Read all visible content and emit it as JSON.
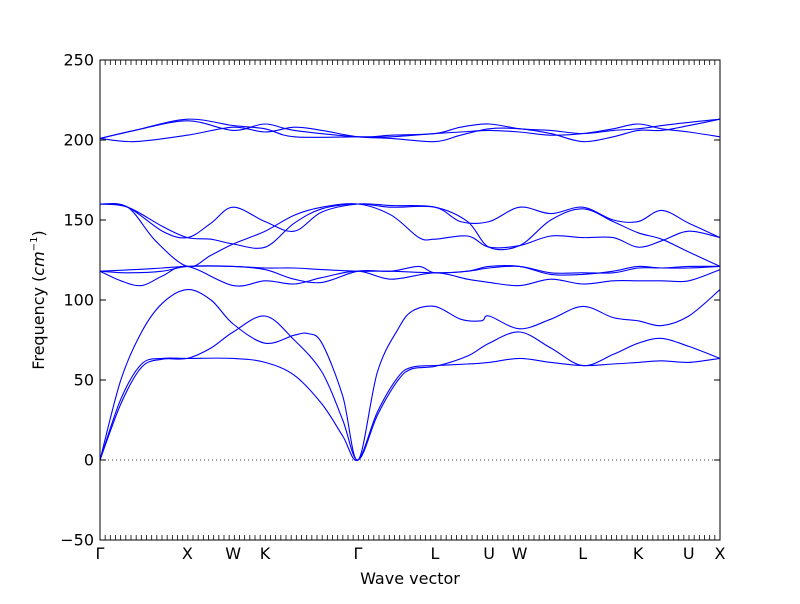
{
  "chart_data": {
    "type": "line",
    "xlabel": "Wave vector",
    "ylabel": "Frequency",
    "ylabel_unit_base": "cm",
    "ylabel_unit_exp": "−1",
    "ylim": [
      -50,
      250
    ],
    "yticks": [
      -50,
      0,
      50,
      100,
      150,
      200,
      250
    ],
    "xlim": [
      0,
      8.94
    ],
    "xticks": [
      {
        "label": "Γ",
        "x": 0
      },
      {
        "label": "X",
        "x": 1.26
      },
      {
        "label": "W",
        "x": 1.92
      },
      {
        "label": "K",
        "x": 2.38
      },
      {
        "label": "Γ",
        "x": 3.72
      },
      {
        "label": "L",
        "x": 4.83
      },
      {
        "label": "U",
        "x": 5.61
      },
      {
        "label": "W",
        "x": 6.05
      },
      {
        "label": "L",
        "x": 6.96
      },
      {
        "label": "K",
        "x": 7.76
      },
      {
        "label": "U",
        "x": 8.49
      },
      {
        "label": "X",
        "x": 8.94
      }
    ],
    "line_color": "#0000ff",
    "zero_line": {
      "y": 0,
      "style": "dotted"
    },
    "branches": [
      [
        [
          0,
          0
        ],
        [
          0.3,
          38
        ],
        [
          0.6,
          60
        ],
        [
          0.9,
          63.5
        ],
        [
          1.26,
          63.5
        ],
        [
          1.92,
          63.5
        ],
        [
          2.38,
          61
        ],
        [
          2.8,
          53
        ],
        [
          3.2,
          35
        ],
        [
          3.5,
          15
        ],
        [
          3.72,
          0
        ],
        [
          4.0,
          30
        ],
        [
          4.3,
          52
        ],
        [
          4.5,
          58
        ],
        [
          4.83,
          59
        ],
        [
          5.3,
          60
        ],
        [
          5.61,
          61
        ],
        [
          6.05,
          63.5
        ],
        [
          6.5,
          61
        ],
        [
          6.96,
          59
        ],
        [
          7.4,
          60
        ],
        [
          7.76,
          61
        ],
        [
          8.1,
          62
        ],
        [
          8.49,
          61
        ],
        [
          8.94,
          63.5
        ]
      ],
      [
        [
          0,
          0
        ],
        [
          0.3,
          35
        ],
        [
          0.6,
          58
        ],
        [
          0.9,
          63
        ],
        [
          1.26,
          63.5
        ],
        [
          1.6,
          70
        ],
        [
          1.92,
          80
        ],
        [
          2.38,
          90
        ],
        [
          2.8,
          75
        ],
        [
          3.2,
          55
        ],
        [
          3.5,
          25
        ],
        [
          3.72,
          0
        ],
        [
          4.0,
          28
        ],
        [
          4.3,
          50
        ],
        [
          4.5,
          57
        ],
        [
          4.83,
          58.5
        ],
        [
          5.3,
          65
        ],
        [
          5.61,
          73
        ],
        [
          6.05,
          80
        ],
        [
          6.5,
          70
        ],
        [
          6.96,
          59
        ],
        [
          7.4,
          66
        ],
        [
          7.76,
          73
        ],
        [
          8.1,
          76
        ],
        [
          8.49,
          71
        ],
        [
          8.94,
          63.5
        ]
      ],
      [
        [
          0,
          0
        ],
        [
          0.3,
          50
        ],
        [
          0.6,
          80
        ],
        [
          0.9,
          98
        ],
        [
          1.26,
          106.5
        ],
        [
          1.6,
          100
        ],
        [
          1.92,
          85
        ],
        [
          2.38,
          73
        ],
        [
          2.8,
          78
        ],
        [
          3.0,
          79
        ],
        [
          3.2,
          73
        ],
        [
          3.5,
          40
        ],
        [
          3.72,
          0
        ],
        [
          4.0,
          55
        ],
        [
          4.3,
          82
        ],
        [
          4.5,
          93
        ],
        [
          4.83,
          96
        ],
        [
          5.2,
          88
        ],
        [
          5.5,
          87
        ],
        [
          5.61,
          90
        ],
        [
          6.05,
          82
        ],
        [
          6.5,
          88
        ],
        [
          6.96,
          96
        ],
        [
          7.4,
          89
        ],
        [
          7.76,
          87
        ],
        [
          8.1,
          84
        ],
        [
          8.49,
          90
        ],
        [
          8.94,
          106.5
        ]
      ],
      [
        [
          0,
          118
        ],
        [
          0.3,
          112
        ],
        [
          0.6,
          109
        ],
        [
          0.9,
          115
        ],
        [
          1.26,
          121
        ],
        [
          1.92,
          109
        ],
        [
          2.38,
          112
        ],
        [
          2.8,
          110
        ],
        [
          3.2,
          114
        ],
        [
          3.72,
          118
        ],
        [
          4.2,
          113
        ],
        [
          4.83,
          117
        ],
        [
          5.3,
          113
        ],
        [
          5.61,
          111
        ],
        [
          6.05,
          109
        ],
        [
          6.5,
          113
        ],
        [
          6.96,
          110
        ],
        [
          7.4,
          112
        ],
        [
          7.76,
          112
        ],
        [
          8.1,
          112
        ],
        [
          8.49,
          112
        ],
        [
          8.94,
          119
        ]
      ],
      [
        [
          0,
          118
        ],
        [
          0.4,
          117
        ],
        [
          0.9,
          118
        ],
        [
          1.26,
          121
        ],
        [
          1.92,
          121
        ],
        [
          2.38,
          119
        ],
        [
          2.8,
          113
        ],
        [
          3.2,
          111
        ],
        [
          3.72,
          118
        ],
        [
          4.2,
          118
        ],
        [
          4.6,
          121
        ],
        [
          4.83,
          117
        ],
        [
          5.3,
          118
        ],
        [
          5.61,
          120
        ],
        [
          6.05,
          121
        ],
        [
          6.5,
          117
        ],
        [
          6.96,
          117
        ],
        [
          7.4,
          117
        ],
        [
          7.76,
          120
        ],
        [
          8.1,
          120
        ],
        [
          8.49,
          120
        ],
        [
          8.94,
          121
        ]
      ],
      [
        [
          0,
          118
        ],
        [
          0.5,
          119
        ],
        [
          0.9,
          120
        ],
        [
          1.26,
          121
        ],
        [
          1.92,
          121
        ],
        [
          2.38,
          120
        ],
        [
          2.8,
          120
        ],
        [
          3.2,
          119
        ],
        [
          3.72,
          118
        ],
        [
          4.2,
          118
        ],
        [
          4.83,
          117
        ],
        [
          5.3,
          118
        ],
        [
          5.61,
          121
        ],
        [
          6.05,
          121
        ],
        [
          6.5,
          116
        ],
        [
          6.96,
          116
        ],
        [
          7.4,
          118
        ],
        [
          7.76,
          121
        ],
        [
          8.1,
          120
        ],
        [
          8.49,
          121
        ],
        [
          8.94,
          121
        ]
      ],
      [
        [
          0,
          160
        ],
        [
          0.4,
          158
        ],
        [
          0.8,
          137
        ],
        [
          1.26,
          121
        ],
        [
          1.6,
          128
        ],
        [
          1.92,
          135
        ],
        [
          2.38,
          143
        ],
        [
          2.8,
          153
        ],
        [
          3.2,
          158
        ],
        [
          3.72,
          160
        ],
        [
          4.2,
          153
        ],
        [
          4.6,
          139
        ],
        [
          4.83,
          138
        ],
        [
          5.3,
          140
        ],
        [
          5.61,
          133
        ],
        [
          6.05,
          134
        ],
        [
          6.5,
          140
        ],
        [
          6.96,
          139
        ],
        [
          7.4,
          139
        ],
        [
          7.76,
          133
        ],
        [
          8.1,
          137
        ],
        [
          8.49,
          143
        ],
        [
          8.94,
          139
        ]
      ],
      [
        [
          0,
          160
        ],
        [
          0.4,
          158
        ],
        [
          0.9,
          146
        ],
        [
          1.26,
          139
        ],
        [
          1.6,
          138
        ],
        [
          1.92,
          135
        ],
        [
          2.38,
          133
        ],
        [
          2.8,
          148
        ],
        [
          3.2,
          157
        ],
        [
          3.72,
          160
        ],
        [
          4.2,
          158
        ],
        [
          4.83,
          158
        ],
        [
          5.2,
          149
        ],
        [
          5.61,
          149
        ],
        [
          6.05,
          158
        ],
        [
          6.5,
          154
        ],
        [
          6.96,
          158
        ],
        [
          7.4,
          150
        ],
        [
          7.76,
          149
        ],
        [
          8.1,
          156
        ],
        [
          8.49,
          148
        ],
        [
          8.94,
          139
        ]
      ],
      [
        [
          0,
          160
        ],
        [
          0.4,
          158
        ],
        [
          0.9,
          143
        ],
        [
          1.26,
          139
        ],
        [
          1.6,
          148
        ],
        [
          1.92,
          158
        ],
        [
          2.38,
          149
        ],
        [
          2.8,
          143
        ],
        [
          3.2,
          155
        ],
        [
          3.72,
          160
        ],
        [
          4.2,
          159
        ],
        [
          4.83,
          158
        ],
        [
          5.3,
          149
        ],
        [
          5.61,
          133
        ],
        [
          6.05,
          134
        ],
        [
          6.5,
          150
        ],
        [
          6.96,
          157
        ],
        [
          7.4,
          149
        ],
        [
          7.76,
          142
        ],
        [
          8.1,
          138
        ],
        [
          8.49,
          130
        ],
        [
          8.94,
          121
        ]
      ],
      [
        [
          0,
          201
        ],
        [
          0.5,
          206
        ],
        [
          1.26,
          213
        ],
        [
          1.92,
          209
        ],
        [
          2.38,
          207
        ],
        [
          2.8,
          202
        ],
        [
          3.72,
          202
        ],
        [
          4.2,
          202
        ],
        [
          4.83,
          204
        ],
        [
          5.2,
          205
        ],
        [
          5.61,
          206
        ],
        [
          6.05,
          205
        ],
        [
          6.5,
          203
        ],
        [
          6.96,
          204
        ],
        [
          7.4,
          207
        ],
        [
          7.76,
          210
        ],
        [
          8.1,
          207
        ],
        [
          8.49,
          205
        ],
        [
          8.94,
          202
        ]
      ],
      [
        [
          0,
          201
        ],
        [
          0.5,
          206
        ],
        [
          1.26,
          212
        ],
        [
          1.92,
          206
        ],
        [
          2.38,
          210
        ],
        [
          2.8,
          206
        ],
        [
          3.72,
          202
        ],
        [
          4.2,
          203
        ],
        [
          4.83,
          204
        ],
        [
          5.2,
          208
        ],
        [
          5.61,
          210
        ],
        [
          6.05,
          207
        ],
        [
          6.5,
          206
        ],
        [
          6.96,
          204
        ],
        [
          7.4,
          206
        ],
        [
          7.76,
          207
        ],
        [
          8.1,
          209
        ],
        [
          8.49,
          211
        ],
        [
          8.94,
          213
        ]
      ],
      [
        [
          0,
          201
        ],
        [
          0.5,
          199
        ],
        [
          1.26,
          203
        ],
        [
          1.92,
          208
        ],
        [
          2.38,
          205
        ],
        [
          2.8,
          208
        ],
        [
          3.2,
          206
        ],
        [
          3.72,
          202
        ],
        [
          4.2,
          201
        ],
        [
          4.83,
          199
        ],
        [
          5.2,
          203
        ],
        [
          5.61,
          207
        ],
        [
          6.05,
          207
        ],
        [
          6.5,
          204
        ],
        [
          6.96,
          199
        ],
        [
          7.4,
          202
        ],
        [
          7.76,
          206
        ],
        [
          8.1,
          206
        ],
        [
          8.49,
          209
        ],
        [
          8.94,
          213
        ]
      ]
    ]
  }
}
